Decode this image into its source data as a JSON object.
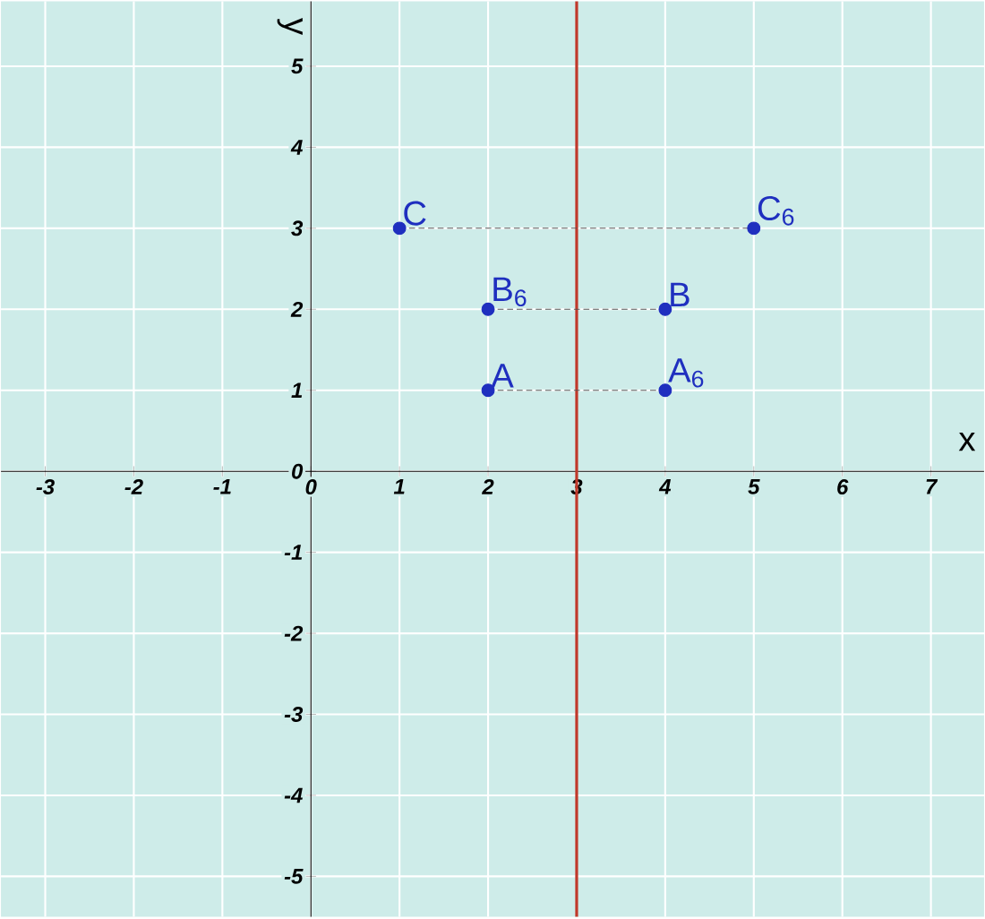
{
  "chart_data": {
    "type": "scatter",
    "xlabel": "x",
    "ylabel": "y",
    "xlim": [
      -3.5,
      7.6
    ],
    "ylim": [
      -5.5,
      5.8
    ],
    "xticks": [
      -3,
      -2,
      -1,
      0,
      1,
      2,
      3,
      4,
      5,
      6,
      7
    ],
    "yticks": [
      -5,
      -4,
      -3,
      -2,
      -1,
      0,
      1,
      2,
      3,
      4,
      5
    ],
    "grid": true,
    "series": [
      {
        "color": "#1f2fbf",
        "marker": "circle",
        "x": [
          2,
          4,
          2,
          4,
          1,
          5
        ],
        "values": [
          1,
          1,
          2,
          2,
          3,
          3
        ]
      },
      {
        "type": "line",
        "color": "#555555",
        "line_style": "dashed",
        "x": [
          2,
          4
        ],
        "values": [
          1,
          1
        ]
      },
      {
        "type": "line",
        "color": "#555555",
        "line_style": "dashed",
        "x": [
          2,
          4
        ],
        "values": [
          2,
          2
        ]
      },
      {
        "type": "line",
        "color": "#555555",
        "line_style": "dashed",
        "x": [
          1,
          5
        ],
        "values": [
          3,
          3
        ]
      }
    ],
    "ref_lines": [
      {
        "axis": "x",
        "value": 3,
        "color": "#c0392b",
        "line_style": "solid"
      }
    ],
    "annotations": [
      {
        "text": "A",
        "x": 2,
        "y": 1
      },
      {
        "text": "A$_{6}$",
        "x": 4,
        "y": 1
      },
      {
        "text": "B$_{6}$",
        "x": 2,
        "y": 2
      },
      {
        "text": "B",
        "x": 4,
        "y": 2
      },
      {
        "text": "C",
        "x": 1,
        "y": 3
      },
      {
        "text": "C$_{6}$",
        "x": 5,
        "y": 3
      }
    ]
  }
}
